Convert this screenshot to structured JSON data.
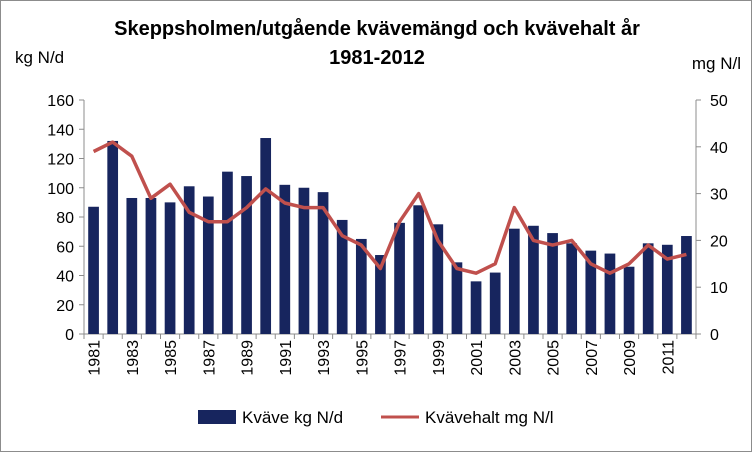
{
  "chart_data": {
    "type": "bar",
    "title": "Skeppsholmen/utgående kvävemängd och kvävehalt år 1981-2012",
    "ylabel": "kg N/d",
    "y2label": "mg N/l",
    "ylim": [
      0,
      160
    ],
    "y2lim": [
      0,
      50
    ],
    "yticks": [
      0,
      20,
      40,
      60,
      80,
      100,
      120,
      140,
      160
    ],
    "y2ticks": [
      0,
      10,
      20,
      30,
      40,
      50
    ],
    "grid": false,
    "legend_position": "bottom",
    "categories": [
      "1981",
      "1982",
      "1983",
      "1984",
      "1985",
      "1986",
      "1987",
      "1988",
      "1989",
      "1990",
      "1991",
      "1992",
      "1993",
      "1994",
      "1995",
      "1996",
      "1997",
      "1998",
      "1999",
      "2000",
      "2001",
      "2002",
      "2003",
      "2004",
      "2005",
      "2006",
      "2007",
      "2008",
      "2009",
      "2010",
      "2011",
      "2012"
    ],
    "x_tick_labels": [
      "1981",
      "",
      "1983",
      "",
      "1985",
      "",
      "1987",
      "",
      "1989",
      "",
      "1991",
      "",
      "1993",
      "",
      "1995",
      "",
      "1997",
      "",
      "1999",
      "",
      "2001",
      "",
      "2003",
      "",
      "2005",
      "",
      "2007",
      "",
      "2009",
      "",
      "2011",
      ""
    ],
    "series": [
      {
        "name": "Kväve kg N/d",
        "type": "bar",
        "axis": "left",
        "color": "#17255e",
        "values": [
          87,
          132,
          93,
          93,
          90,
          101,
          94,
          111,
          108,
          134,
          102,
          100,
          97,
          78,
          65,
          54,
          76,
          88,
          75,
          49,
          36,
          42,
          72,
          74,
          69,
          62,
          57,
          55,
          46,
          62,
          61,
          67
        ]
      },
      {
        "name": "Kvävehalt mg N/l",
        "type": "line",
        "axis": "right",
        "color": "#c0504d",
        "values": [
          39,
          41,
          38,
          29,
          32,
          26,
          24,
          24,
          27,
          31,
          28,
          27,
          27,
          21,
          19,
          14,
          24,
          30,
          20,
          14,
          13,
          15,
          27,
          20,
          19,
          20,
          15,
          13,
          15,
          19,
          16,
          17
        ]
      }
    ]
  }
}
